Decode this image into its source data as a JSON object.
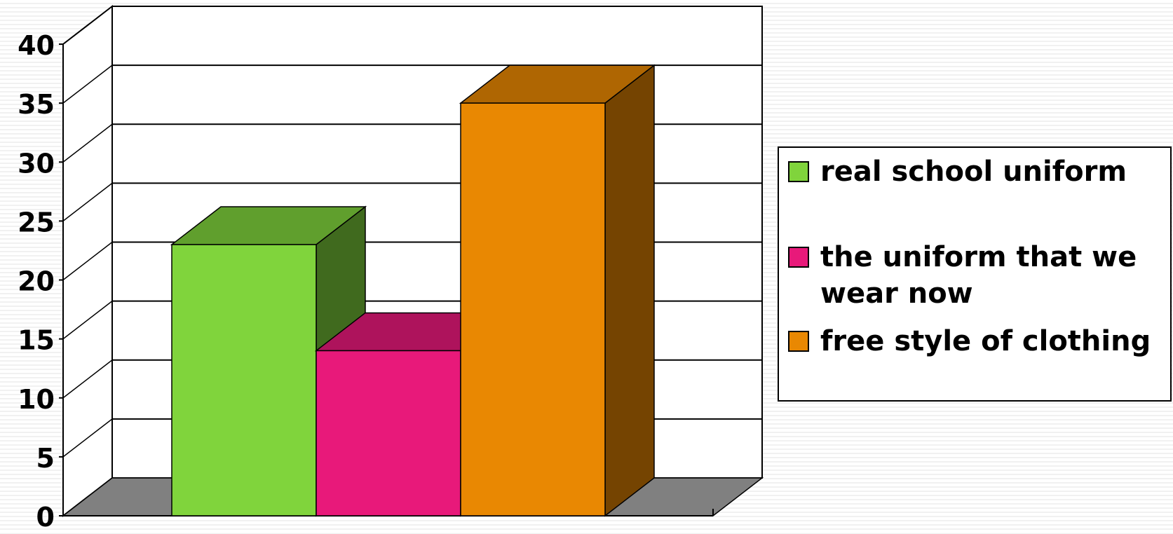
{
  "chart_data": {
    "type": "bar",
    "style": "3d-clustered",
    "title": "",
    "xlabel": "",
    "ylabel": "",
    "ylim": [
      0,
      40
    ],
    "yticks": [
      0,
      5,
      10,
      15,
      20,
      25,
      30,
      35,
      40
    ],
    "grid": true,
    "legend_position": "right",
    "series": [
      {
        "name": "real school uniform",
        "value": 23,
        "color": "#80d43c"
      },
      {
        "name": "the uniform that we wear now",
        "value": 14,
        "color": "#e8197a"
      },
      {
        "name": "free style of clothing",
        "value": 35,
        "color": "#e98802"
      }
    ]
  }
}
